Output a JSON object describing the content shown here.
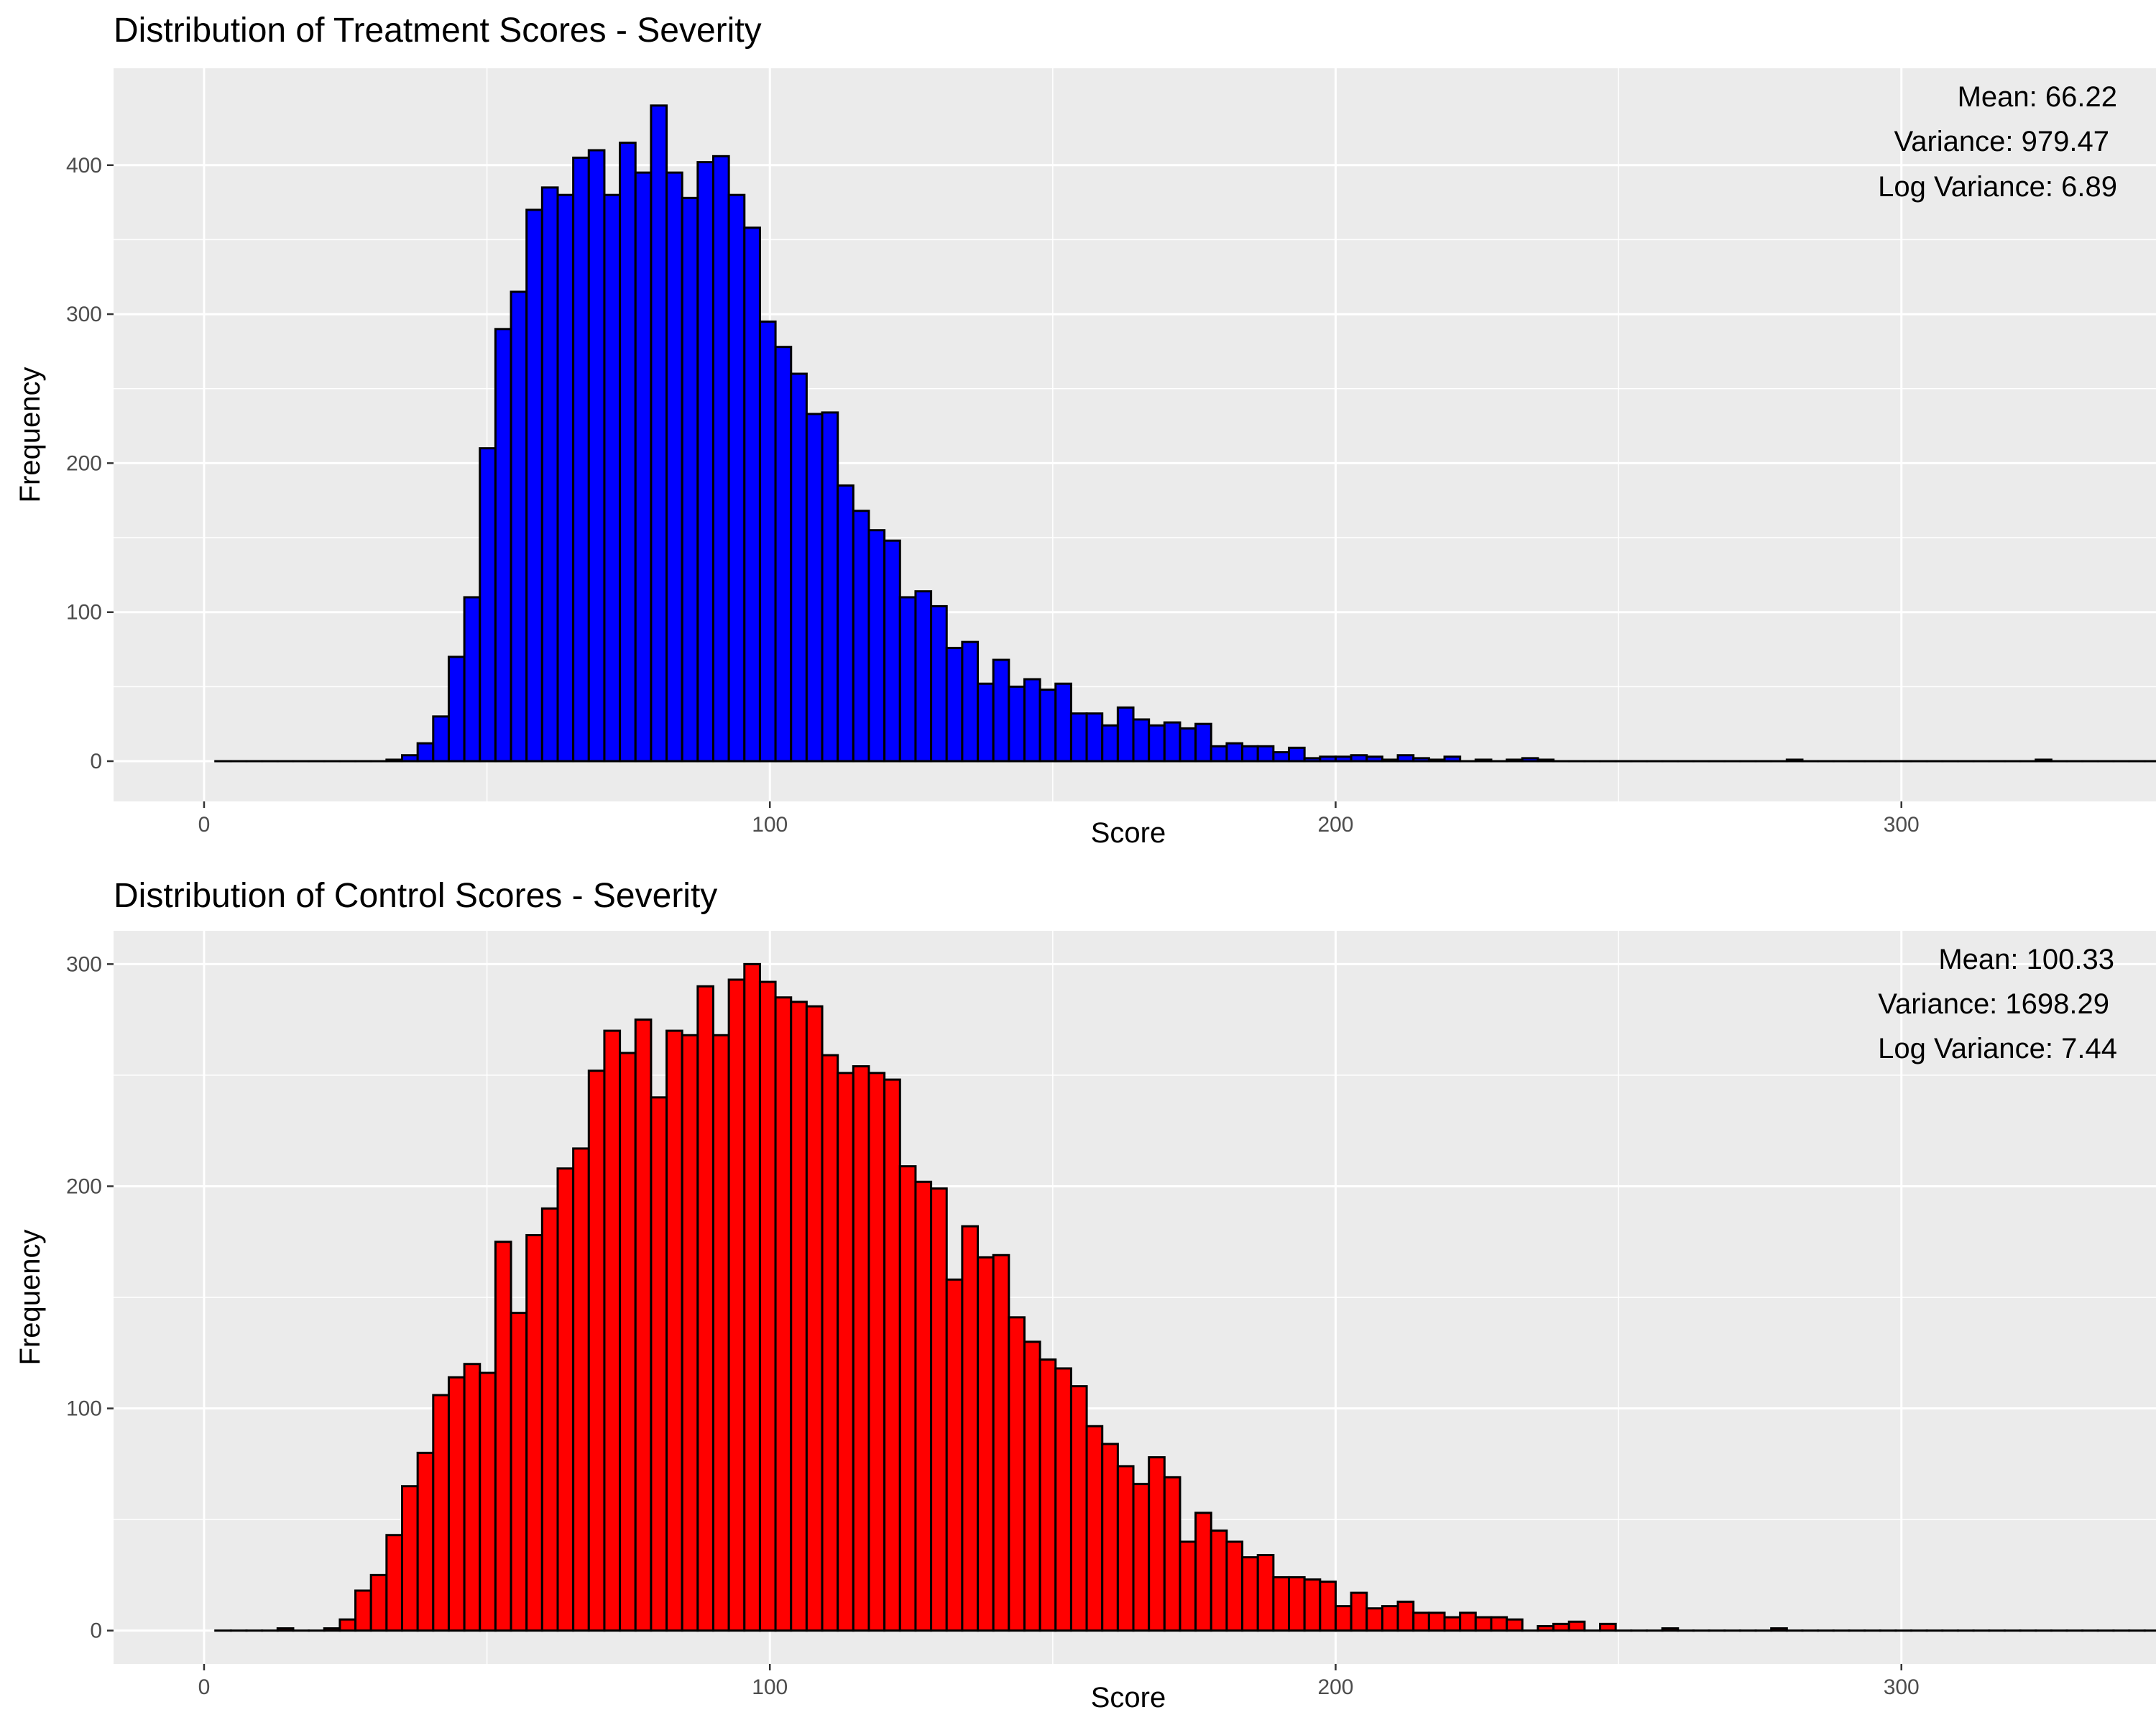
{
  "chart_data": [
    {
      "type": "bar",
      "title": "Distribution of Treatment Scores - Severity",
      "xlabel": "Score",
      "ylabel": "Frequency",
      "fill_color": "#0000ff",
      "outline_color": "#000000",
      "panel_background": "#ebebeb",
      "xlim": [
        -16,
        345
      ],
      "ylim": [
        -27,
        465
      ],
      "xticks": [
        0,
        100,
        200,
        300
      ],
      "yticks": [
        0,
        100,
        200,
        300,
        400
      ],
      "bin_start": 2,
      "bin_width": 2.75,
      "values": [
        0,
        0,
        0,
        0,
        0,
        0,
        0,
        0,
        0,
        0,
        0,
        1,
        4,
        12,
        30,
        70,
        110,
        210,
        290,
        315,
        370,
        385,
        380,
        405,
        410,
        380,
        415,
        395,
        440,
        395,
        378,
        402,
        406,
        380,
        358,
        295,
        278,
        260,
        233,
        234,
        185,
        168,
        155,
        148,
        110,
        114,
        104,
        76,
        80,
        52,
        68,
        50,
        55,
        48,
        52,
        32,
        32,
        24,
        36,
        28,
        24,
        26,
        22,
        25,
        10,
        12,
        10,
        10,
        6,
        9,
        2,
        3,
        3,
        4,
        3,
        1,
        4,
        2,
        1,
        3,
        0,
        1,
        0,
        1,
        2,
        1,
        0,
        0,
        0,
        0,
        0,
        0,
        0,
        0,
        0,
        0,
        0,
        0,
        0,
        0,
        0,
        1,
        0,
        0,
        0,
        0,
        0,
        0,
        0,
        0,
        0,
        0,
        0,
        0,
        0,
        0,
        0,
        1,
        0,
        0,
        0,
        0,
        0,
        0,
        0,
        0,
        0,
        0,
        0,
        0,
        0,
        0,
        0
      ],
      "annotations": [
        "Mean: 66.22",
        "Variance: 979.47",
        "Log Variance: 6.89"
      ]
    },
    {
      "type": "bar",
      "title": "Distribution of Control Scores - Severity",
      "xlabel": "Score",
      "ylabel": "Frequency",
      "fill_color": "#ff0000",
      "outline_color": "#000000",
      "panel_background": "#ebebeb",
      "xlim": [
        -16,
        345
      ],
      "ylim": [
        -15,
        315
      ],
      "xticks": [
        0,
        100,
        200,
        300
      ],
      "yticks": [
        0,
        100,
        200,
        300
      ],
      "bin_start": 2,
      "bin_width": 2.75,
      "values": [
        0,
        0,
        0,
        0,
        1,
        0,
        0,
        1,
        5,
        18,
        25,
        43,
        65,
        80,
        106,
        114,
        120,
        116,
        175,
        143,
        178,
        190,
        208,
        217,
        252,
        270,
        260,
        275,
        240,
        270,
        268,
        290,
        268,
        293,
        300,
        292,
        285,
        283,
        281,
        259,
        251,
        254,
        251,
        248,
        209,
        202,
        199,
        158,
        182,
        168,
        169,
        141,
        130,
        122,
        118,
        110,
        92,
        84,
        74,
        66,
        78,
        69,
        40,
        53,
        45,
        40,
        33,
        34,
        24,
        24,
        23,
        22,
        11,
        17,
        10,
        11,
        13,
        8,
        8,
        6,
        8,
        6,
        6,
        5,
        0,
        2,
        3,
        4,
        0,
        3,
        0,
        0,
        0,
        1,
        0,
        0,
        0,
        0,
        0,
        0,
        1,
        0,
        0,
        0,
        0,
        0,
        0,
        0,
        0,
        0,
        0,
        0,
        0,
        0,
        0,
        0,
        0,
        0,
        0,
        0,
        0,
        0,
        0,
        0,
        0,
        0,
        0,
        0,
        0,
        0,
        0,
        0,
        0,
        0,
        0
      ],
      "annotations": [
        "Mean: 100.33",
        "Variance: 1698.29",
        "Log Variance: 7.44"
      ]
    }
  ]
}
